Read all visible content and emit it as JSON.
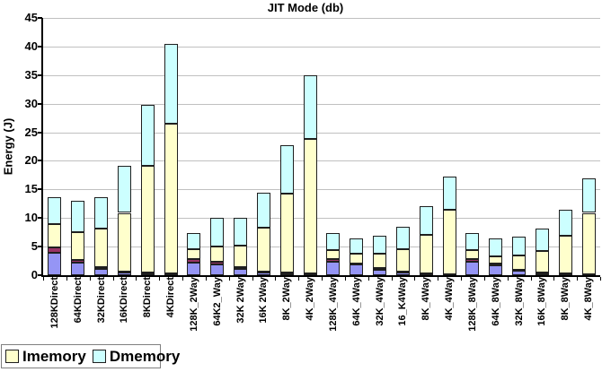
{
  "chart_data": {
    "type": "bar",
    "stacked": true,
    "title": "JIT Mode (db)",
    "ylabel": "Energy (J)",
    "ylim": [
      0,
      45
    ],
    "ytick_step": 5,
    "grid": true,
    "plot_background": "#ffffff",
    "gridline_color": "#c0c0c0",
    "categories": [
      "128KDirect",
      "64KDirect",
      "32KDirect",
      "16KDirect",
      "8KDirect",
      "4KDirect",
      "128K_2Way",
      "64K2_Way",
      "32K 2Way",
      "16K 2Way",
      "8K_2Way",
      "4K_2Way",
      "128K_4Way",
      "64K_4Way",
      "32K_4Way",
      "16_K4Way",
      "8K_4Way",
      "4K_4Way",
      "128K_8Way",
      "64K_8Way",
      "32K_8Way",
      "16K_8Way",
      "8K_8Way",
      "4K_8Way"
    ],
    "series": [
      {
        "label": "",
        "color": "#9595F5",
        "in_legend": false,
        "values": [
          3.9,
          2.2,
          1.1,
          0.5,
          0.3,
          0.2,
          2.2,
          1.9,
          1.1,
          0.5,
          0.3,
          0.2,
          2.3,
          1.9,
          1.0,
          0.4,
          0.2,
          0.1,
          2.3,
          1.8,
          0.8,
          0.3,
          0.2,
          0.1
        ]
      },
      {
        "label": "",
        "color": "#993366",
        "in_legend": false,
        "values": [
          1.0,
          0.5,
          0.3,
          0.2,
          0.1,
          0.1,
          0.7,
          0.5,
          0.3,
          0.2,
          0.1,
          0.1,
          0.6,
          0.2,
          0.2,
          0.2,
          0.1,
          0.1,
          0.6,
          0.2,
          0.2,
          0.2,
          0.1,
          0.1
        ]
      },
      {
        "label": "Imemory",
        "color": "#FFFFCC",
        "in_legend": true,
        "values": [
          4.0,
          4.8,
          6.7,
          10.2,
          18.8,
          26.2,
          1.6,
          2.6,
          3.8,
          7.6,
          13.9,
          23.6,
          1.5,
          1.6,
          2.5,
          3.9,
          6.8,
          11.2,
          1.5,
          1.3,
          2.5,
          3.7,
          6.6,
          10.7
        ]
      },
      {
        "label": "Dmemory",
        "color": "#CCFFFF",
        "in_legend": true,
        "values": [
          4.7,
          5.5,
          5.5,
          8.3,
          10.6,
          14.0,
          2.9,
          5.0,
          4.8,
          6.2,
          8.5,
          11.1,
          3.0,
          2.8,
          3.2,
          4.0,
          4.9,
          5.9,
          3.0,
          3.2,
          3.3,
          4.0,
          4.6,
          6.0
        ]
      }
    ],
    "legend": {
      "position": "bottom-left",
      "entries": [
        {
          "label": "Imemory",
          "color": "#FFFFCC"
        },
        {
          "label": "Dmemory",
          "color": "#CCFFFF"
        }
      ]
    }
  }
}
